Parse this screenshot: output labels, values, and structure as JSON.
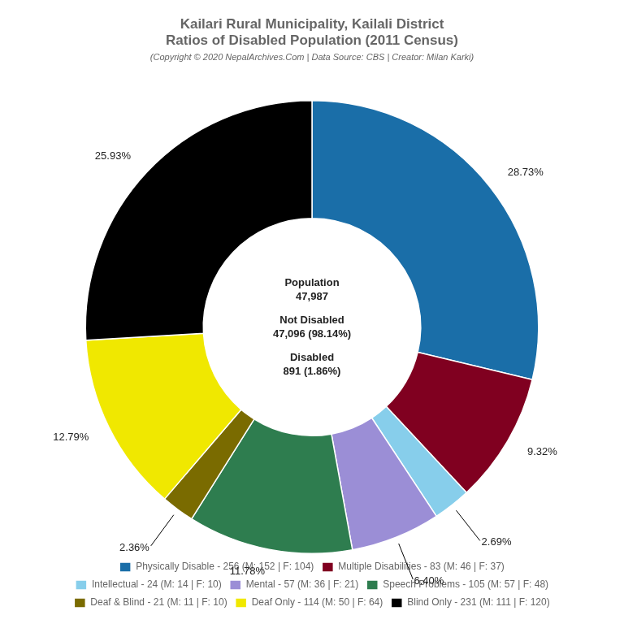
{
  "chart_data": {
    "type": "doughnut",
    "title": [
      "Kailari Rural Municipality, Kailali District",
      "Ratios of Disabled Population (2011 Census)"
    ],
    "subtitle": "(Copyright © 2020 NepalArchives.Com | Data Source: CBS | Creator: Milan Karki)",
    "categories": [
      "Physically Disable - 256 (M: 152 | F: 104)",
      "Multiple Disabilities - 83 (M: 46 | F: 37)",
      "Intellectual - 24 (M: 14 | F: 10)",
      "Mental - 57 (M: 36 | F: 21)",
      "Speech Problems - 105 (M: 57 | F: 48)",
      "Deaf & Blind - 21 (M: 11 | F: 10)",
      "Deaf Only - 114 (M: 50 | F: 64)",
      "Blind Only - 231 (M: 111 | F: 120)"
    ],
    "values": [
      28.73,
      9.32,
      2.69,
      6.4,
      11.78,
      2.36,
      12.79,
      25.93
    ],
    "value_labels": [
      "28.73%",
      "9.32%",
      "2.69%",
      "6.40%",
      "11.78%",
      "2.36%",
      "12.79%",
      "25.93%"
    ],
    "colors": [
      "#1a6ea8",
      "#800020",
      "#87ceeb",
      "#9b8ed6",
      "#2e7d4f",
      "#7a6b00",
      "#f0e800",
      "#000000"
    ],
    "data_labels": true,
    "legend": "bottom",
    "annotations": [
      "Population",
      "47,987",
      "Not Disabled",
      "47,096 (98.14%)",
      "Disabled",
      "891 (1.86%)"
    ]
  }
}
